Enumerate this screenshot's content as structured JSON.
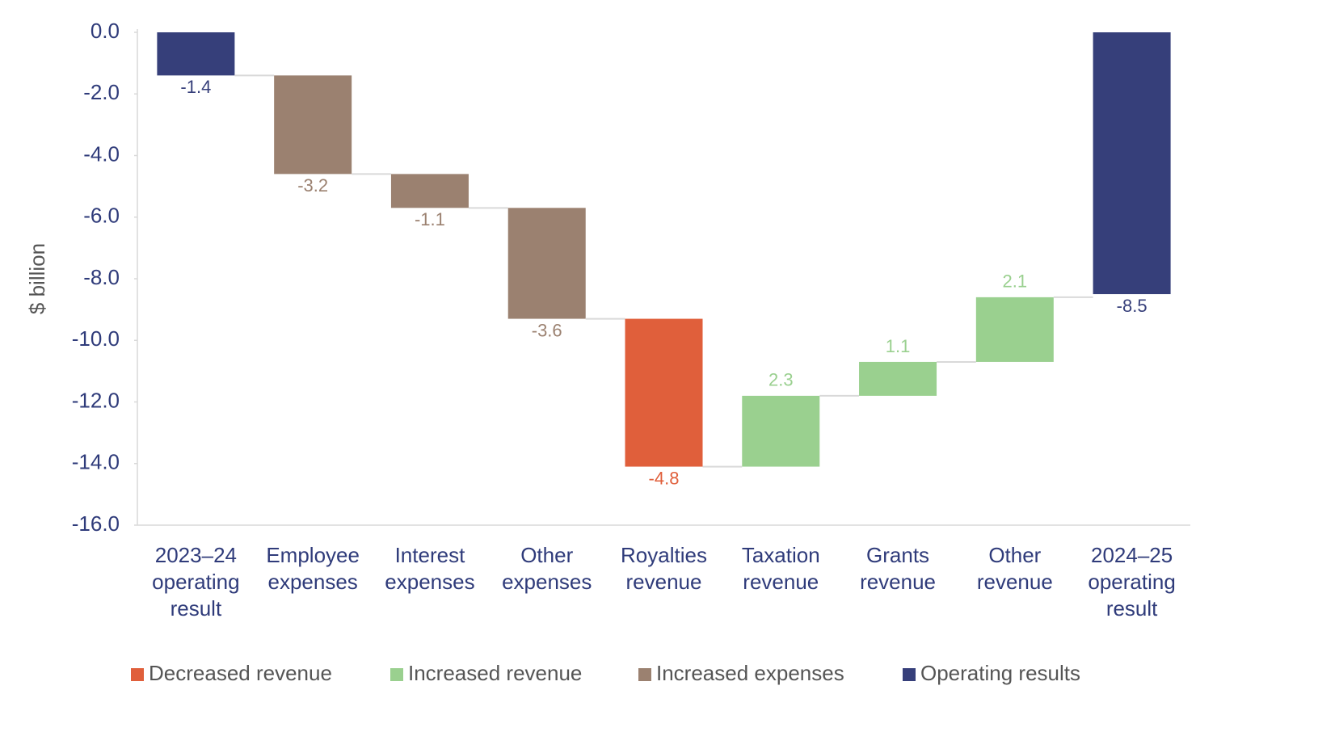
{
  "chart_data": {
    "type": "waterfall",
    "y_label": "$ billion",
    "categories": [
      [
        "2023–24",
        "operating",
        "result"
      ],
      [
        "Employee",
        "expenses"
      ],
      [
        "Interest",
        "expenses"
      ],
      [
        "Other",
        "expenses"
      ],
      [
        "Royalties",
        "revenue"
      ],
      [
        "Taxation",
        "revenue"
      ],
      [
        "Grants",
        "revenue"
      ],
      [
        "Other",
        "revenue"
      ],
      [
        "2024–25",
        "operating",
        "result"
      ]
    ],
    "values": [
      -1.4,
      -3.2,
      -1.1,
      -3.6,
      -4.8,
      2.3,
      1.1,
      2.1,
      -8.5
    ],
    "totals": [
      true,
      false,
      false,
      false,
      false,
      false,
      false,
      false,
      true
    ],
    "colors": [
      "#363f7a",
      "#9b8170",
      "#9b8170",
      "#9b8170",
      "#e05f3b",
      "#9ad08f",
      "#9ad08f",
      "#9ad08f",
      "#363f7a"
    ],
    "legend": [
      {
        "name": "Decreased revenue",
        "color": "#e05f3b"
      },
      {
        "name": "Increased revenue",
        "color": "#9ad08f"
      },
      {
        "name": "Increased expenses",
        "color": "#9b8170"
      },
      {
        "name": "Operating results",
        "color": "#363f7a"
      }
    ],
    "ylim": [
      -16,
      0
    ],
    "yticks": [
      {
        "value": 0,
        "label": "0.0"
      },
      {
        "value": -2,
        "label": "-2.0"
      },
      {
        "value": -4,
        "label": "-4.0"
      },
      {
        "value": -6,
        "label": "-6.0"
      },
      {
        "value": -8,
        "label": "-8.0"
      },
      {
        "value": -10,
        "label": "-10.0"
      },
      {
        "value": -12,
        "label": "-12.0"
      },
      {
        "value": -14,
        "label": "-14.0"
      },
      {
        "value": -16,
        "label": "-16.0"
      }
    ]
  }
}
